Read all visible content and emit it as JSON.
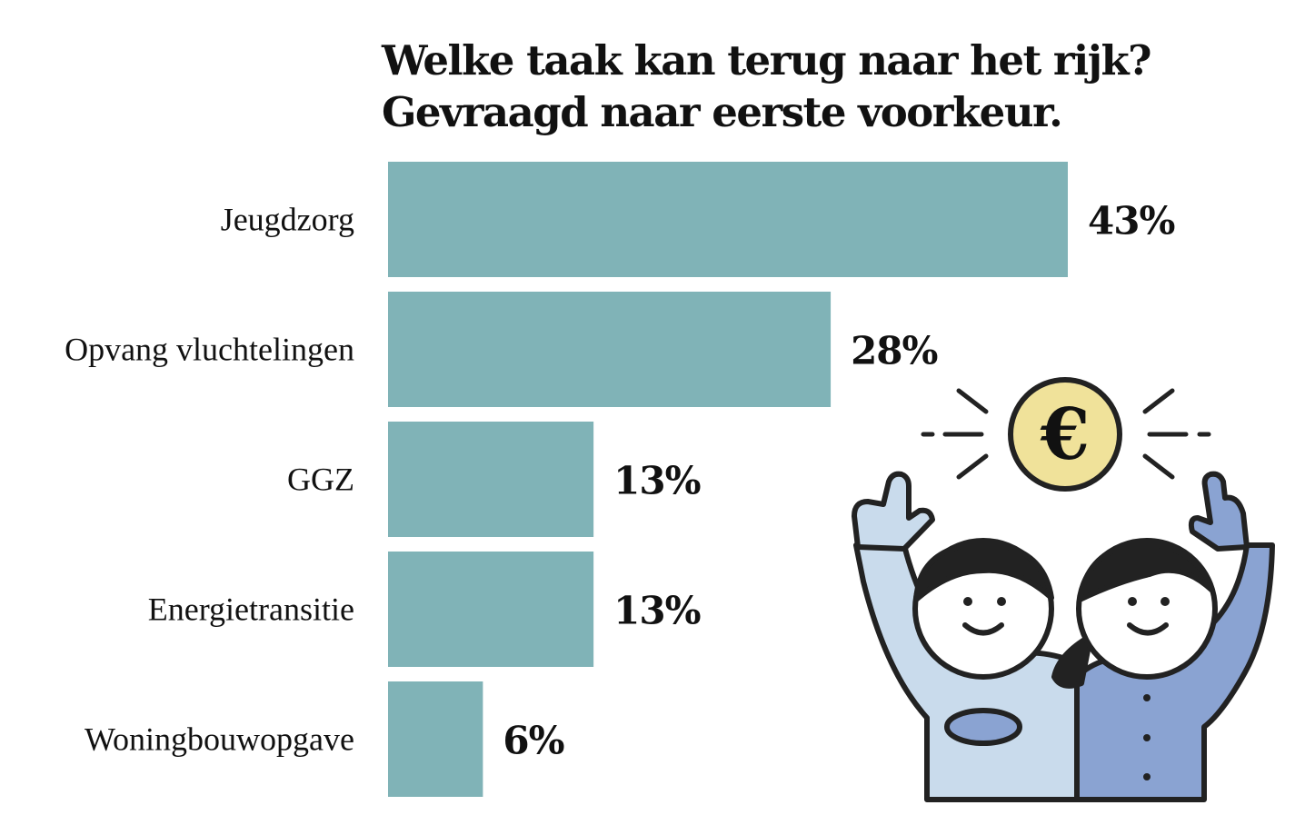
{
  "chart_data": {
    "type": "bar",
    "orientation": "horizontal",
    "title": [
      "Welke taak kan terug naar het rijk?",
      "Gevraagd naar eerste voorkeur."
    ],
    "categories": [
      "Jeugdzorg",
      "Opvang vluchtelingen",
      "GGZ",
      "Energietransitie",
      "Woningbouwopgave"
    ],
    "values": [
      43,
      28,
      13,
      13,
      6
    ],
    "value_labels": [
      "43%",
      "28%",
      "13%",
      "13%",
      "6%"
    ],
    "unit": "%",
    "xlim": [
      0,
      43
    ],
    "grid": false,
    "legend": "none",
    "bar_color": "#80b3b7"
  },
  "illustration": {
    "coin_symbol": "€",
    "coin_color": "#f0e29a",
    "left_person_color": "#c9dbec",
    "right_person_color": "#8aa3d2"
  }
}
